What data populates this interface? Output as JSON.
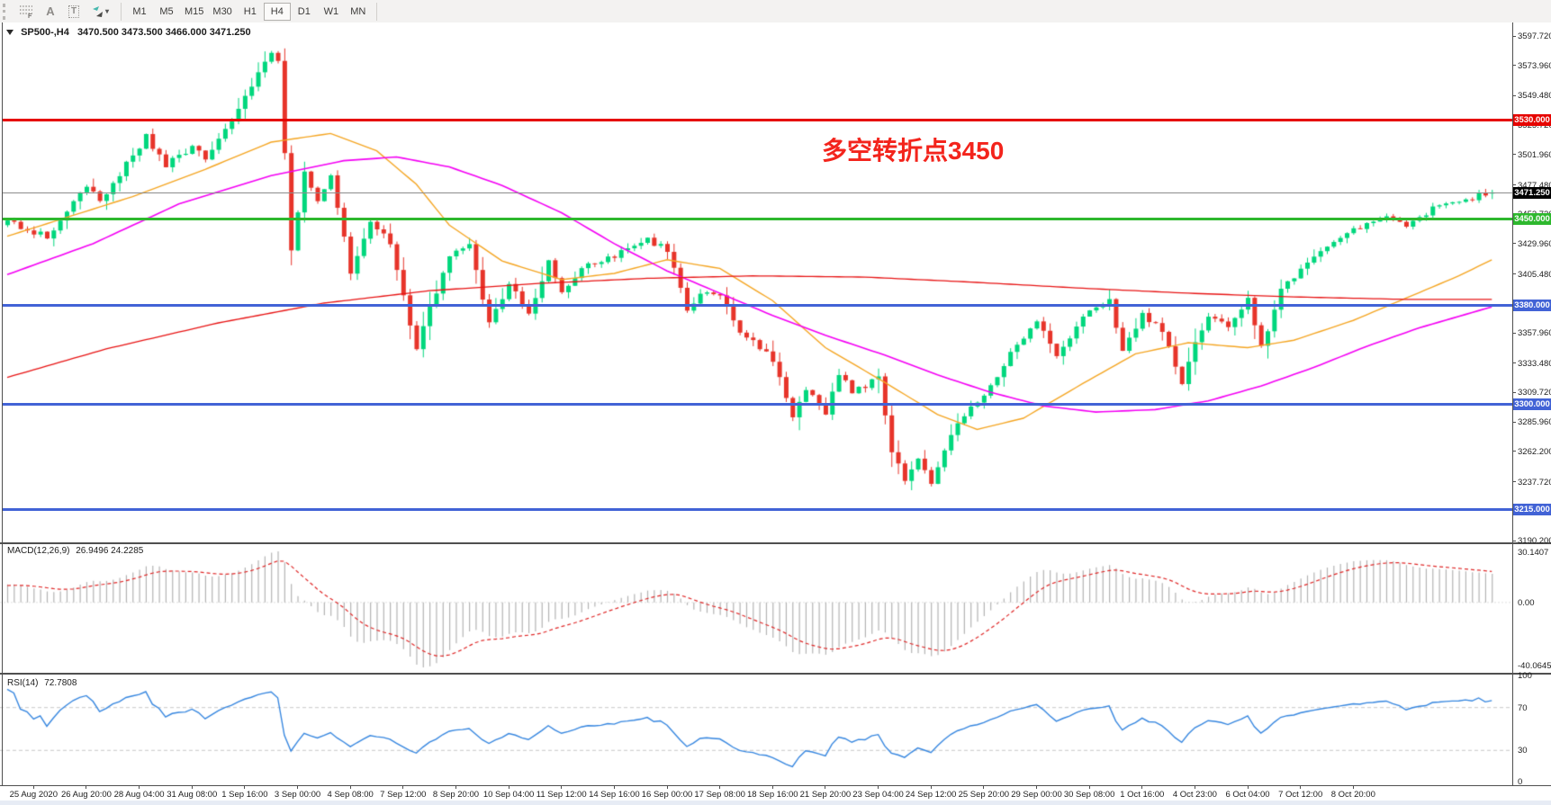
{
  "toolbar": {
    "tools": [
      {
        "name": "grid-f-tool",
        "glyph": "F"
      },
      {
        "name": "text-label-tool",
        "glyph": "A"
      },
      {
        "name": "text-box-tool",
        "glyph": "T"
      },
      {
        "name": "arrow-styles-tool",
        "glyph": "▾"
      }
    ],
    "timeframes": [
      "M1",
      "M5",
      "M15",
      "M30",
      "H1",
      "H4",
      "D1",
      "W1",
      "MN"
    ],
    "active_timeframe": "H4"
  },
  "chart": {
    "title": "SP500-,H4",
    "ohlc": "3470.500 3473.500 3466.000 3471.250",
    "annotation": "多空转折点3450",
    "annotation_color": "#f3241c"
  },
  "chart_data": {
    "type": "candlestick",
    "symbol": "SP500-",
    "timeframe": "H4",
    "open": 3470.5,
    "high": 3473.5,
    "low": 3466.0,
    "close": 3471.25,
    "current_price": 3471.25,
    "current_price_label": "3471.250",
    "ylim": [
      3190.2,
      3597.72
    ],
    "y_axis_ticks": [
      "3597.720",
      "3573.960",
      "3549.480",
      "3525.720",
      "3501.960",
      "3477.480",
      "3453.720",
      "3429.960",
      "3405.480",
      "3381.720",
      "3357.960",
      "3333.480",
      "3309.720",
      "3285.960",
      "3262.200",
      "3237.720",
      "3213.960",
      "3190.200"
    ],
    "x_labels": [
      "25 Aug 2020",
      "26 Aug 20:00",
      "28 Aug 04:00",
      "31 Aug 08:00",
      "1 Sep 16:00",
      "3 Sep 00:00",
      "4 Sep 08:00",
      "7 Sep 12:00",
      "8 Sep 20:00",
      "10 Sep 04:00",
      "11 Sep 12:00",
      "14 Sep 16:00",
      "16 Sep 00:00",
      "17 Sep 08:00",
      "18 Sep 16:00",
      "21 Sep 20:00",
      "23 Sep 04:00",
      "24 Sep 12:00",
      "25 Sep 20:00",
      "29 Sep 00:00",
      "30 Sep 08:00",
      "1 Oct 16:00",
      "4 Oct 23:00",
      "6 Oct 04:00",
      "7 Oct 12:00",
      "8 Oct 20:00"
    ],
    "bar_count": 226,
    "bars_per_label": 8,
    "first_label_bar": 4,
    "price_path_anchors": [
      [
        -40,
        3390
      ],
      [
        -25,
        3412
      ],
      [
        -10,
        3432
      ],
      [
        0,
        3447
      ],
      [
        6,
        3436
      ],
      [
        12,
        3478
      ],
      [
        14,
        3464
      ],
      [
        21,
        3516
      ],
      [
        24,
        3493
      ],
      [
        28,
        3508
      ],
      [
        30,
        3499
      ],
      [
        34,
        3530
      ],
      [
        37,
        3558
      ],
      [
        40,
        3585
      ],
      [
        41,
        3578
      ],
      [
        43,
        3425
      ],
      [
        45,
        3490
      ],
      [
        47,
        3465
      ],
      [
        49,
        3486
      ],
      [
        52,
        3408
      ],
      [
        55,
        3448
      ],
      [
        58,
        3430
      ],
      [
        62,
        3344
      ],
      [
        64,
        3378
      ],
      [
        67,
        3420
      ],
      [
        70,
        3428
      ],
      [
        73,
        3367
      ],
      [
        76,
        3398
      ],
      [
        79,
        3372
      ],
      [
        82,
        3415
      ],
      [
        84,
        3390
      ],
      [
        88,
        3414
      ],
      [
        92,
        3420
      ],
      [
        97,
        3434
      ],
      [
        100,
        3424
      ],
      [
        103,
        3378
      ],
      [
        106,
        3392
      ],
      [
        108,
        3386
      ],
      [
        111,
        3360
      ],
      [
        116,
        3336
      ],
      [
        119,
        3288
      ],
      [
        121,
        3312
      ],
      [
        124,
        3293
      ],
      [
        126,
        3325
      ],
      [
        128,
        3310
      ],
      [
        132,
        3322
      ],
      [
        134,
        3262
      ],
      [
        136,
        3240
      ],
      [
        138,
        3256
      ],
      [
        140,
        3237
      ],
      [
        142,
        3262
      ],
      [
        144,
        3285
      ],
      [
        148,
        3307
      ],
      [
        153,
        3350
      ],
      [
        156,
        3366
      ],
      [
        159,
        3341
      ],
      [
        164,
        3376
      ],
      [
        167,
        3385
      ],
      [
        169,
        3343
      ],
      [
        172,
        3373
      ],
      [
        175,
        3360
      ],
      [
        178,
        3315
      ],
      [
        180,
        3350
      ],
      [
        182,
        3370
      ],
      [
        185,
        3363
      ],
      [
        188,
        3387
      ],
      [
        190,
        3345
      ],
      [
        193,
        3395
      ],
      [
        196,
        3409
      ],
      [
        199,
        3425
      ],
      [
        204,
        3440
      ],
      [
        208,
        3452
      ],
      [
        212,
        3444
      ],
      [
        216,
        3458
      ],
      [
        220,
        3462
      ],
      [
        223,
        3469
      ],
      [
        225,
        3471.25
      ]
    ],
    "horizontal_lines": [
      {
        "price": 3530,
        "label": "3530.000",
        "color": "#e60400"
      },
      {
        "price": 3450,
        "label": "3450.000",
        "color": "#2eb82e"
      },
      {
        "price": 3380,
        "label": "3380.000",
        "color": "#4263d6"
      },
      {
        "price": 3300,
        "label": "3300.000",
        "color": "#4263d6"
      },
      {
        "price": 3215,
        "label": "3215.000",
        "color": "#4263d6"
      }
    ],
    "moving_averages": [
      {
        "name": "ma-fast-orange",
        "color": "#f5a623",
        "width": 1.4,
        "points": [
          [
            0,
            3436
          ],
          [
            19,
            3468
          ],
          [
            30,
            3490
          ],
          [
            40,
            3512
          ],
          [
            49,
            3519
          ],
          [
            56,
            3505
          ],
          [
            62,
            3478
          ],
          [
            67,
            3445
          ],
          [
            75,
            3416
          ],
          [
            84,
            3401
          ],
          [
            92,
            3406
          ],
          [
            100,
            3417
          ],
          [
            108,
            3410
          ],
          [
            116,
            3384
          ],
          [
            124,
            3346
          ],
          [
            133,
            3318
          ],
          [
            141,
            3292
          ],
          [
            147,
            3280
          ],
          [
            154,
            3289
          ],
          [
            163,
            3317
          ],
          [
            171,
            3341
          ],
          [
            179,
            3350
          ],
          [
            188,
            3346
          ],
          [
            195,
            3352
          ],
          [
            204,
            3368
          ],
          [
            212,
            3386
          ],
          [
            220,
            3404
          ],
          [
            225,
            3417
          ]
        ]
      },
      {
        "name": "ma-medium-magenta",
        "color": "#f400f4",
        "width": 1.6,
        "points": [
          [
            0,
            3405
          ],
          [
            13,
            3430
          ],
          [
            26,
            3462
          ],
          [
            40,
            3485
          ],
          [
            51,
            3497
          ],
          [
            59,
            3500
          ],
          [
            67,
            3492
          ],
          [
            75,
            3477
          ],
          [
            84,
            3455
          ],
          [
            92,
            3430
          ],
          [
            100,
            3408
          ],
          [
            108,
            3390
          ],
          [
            116,
            3372
          ],
          [
            124,
            3356
          ],
          [
            133,
            3340
          ],
          [
            141,
            3324
          ],
          [
            149,
            3310
          ],
          [
            157,
            3299
          ],
          [
            165,
            3294
          ],
          [
            174,
            3296
          ],
          [
            182,
            3303
          ],
          [
            190,
            3315
          ],
          [
            198,
            3330
          ],
          [
            206,
            3347
          ],
          [
            214,
            3362
          ],
          [
            225,
            3379
          ]
        ]
      },
      {
        "name": "ma-slow-red",
        "color": "#e81414",
        "width": 1.3,
        "points": [
          [
            0,
            3322
          ],
          [
            15,
            3345
          ],
          [
            32,
            3366
          ],
          [
            48,
            3382
          ],
          [
            64,
            3392
          ],
          [
            81,
            3398
          ],
          [
            97,
            3402
          ],
          [
            113,
            3404
          ],
          [
            130,
            3403
          ],
          [
            146,
            3399
          ],
          [
            163,
            3394
          ],
          [
            179,
            3390
          ],
          [
            195,
            3387
          ],
          [
            212,
            3385
          ],
          [
            225,
            3385
          ]
        ]
      }
    ],
    "indicators": {
      "macd": {
        "label": "MACD(12,26,9)",
        "display_values": "26.9496 24.2285",
        "fast": 12,
        "slow": 26,
        "signal": 9,
        "axis_labels": [
          "30.1407",
          "0.00",
          "-40.0645"
        ],
        "histogram_color": "#b4b4b4",
        "signal_color": "#e02828"
      },
      "rsi": {
        "label": "RSI(14)",
        "display_value": "72.7808",
        "period": 14,
        "axis_labels": [
          "100",
          "70",
          "30",
          "0"
        ],
        "levels": [
          70,
          30
        ],
        "line_color": "#3787e0",
        "level_color": "#c8c8c8"
      }
    },
    "colors": {
      "up": "#00d77d",
      "down": "#e7342a",
      "bid_line": "#8c8c8c",
      "background": "#ffffff"
    }
  }
}
